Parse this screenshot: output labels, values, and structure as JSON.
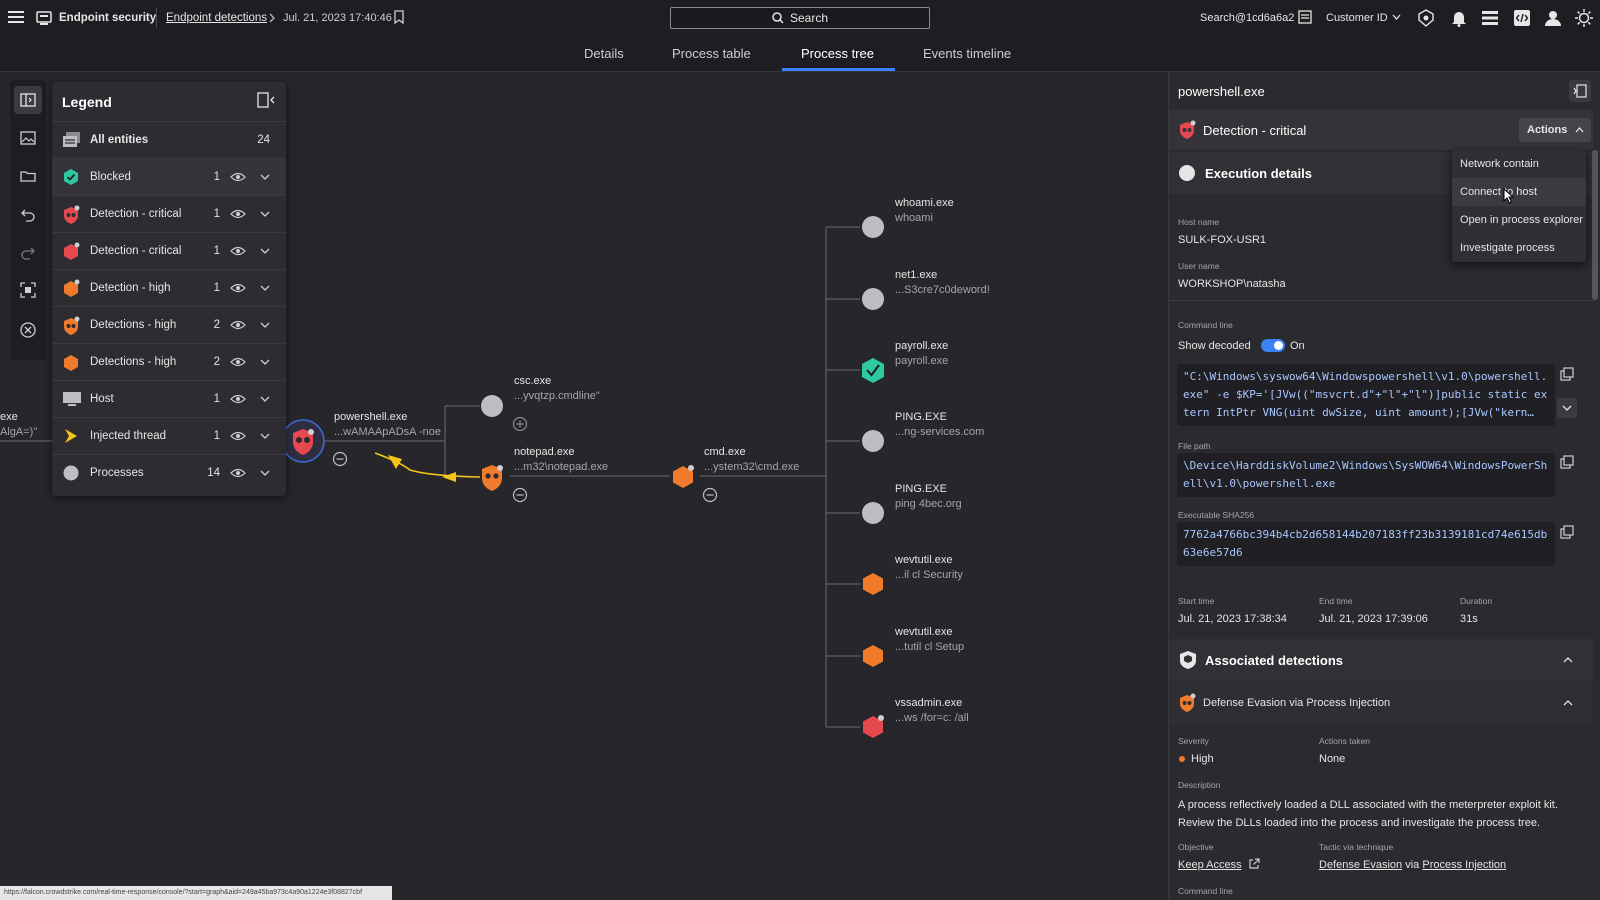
{
  "topbar": {
    "app_title": "Endpoint security",
    "breadcrumb_link": "Endpoint detections",
    "breadcrumb_current": "Jul. 21, 2023 17:40:46",
    "search_label": "Search",
    "user": "Search@1cd6a6a2",
    "customer_label": "Customer ID"
  },
  "tabs": [
    {
      "label": "Details",
      "active": false
    },
    {
      "label": "Process table",
      "active": false
    },
    {
      "label": "Process tree",
      "active": true
    },
    {
      "label": "Events timeline",
      "active": false
    }
  ],
  "legend": {
    "title": "Legend",
    "rows": [
      {
        "label": "All entities",
        "count": "24",
        "icon": "all-entities-icon"
      },
      {
        "label": "Blocked",
        "count": "1",
        "icon": "blocked-icon"
      },
      {
        "label": "Detection - critical",
        "count": "1",
        "icon": "critical-shield-icon"
      },
      {
        "label": "Detection - critical",
        "count": "1",
        "icon": "critical-hex-icon"
      },
      {
        "label": "Detection - high",
        "count": "1",
        "icon": "high-hex-icon"
      },
      {
        "label": "Detections - high",
        "count": "2",
        "icon": "high-shield-icon"
      },
      {
        "label": "Detections - high",
        "count": "2",
        "icon": "high-hex-icon"
      },
      {
        "label": "Host",
        "count": "1",
        "icon": "host-icon"
      },
      {
        "label": "Injected thread",
        "count": "1",
        "icon": "injected-thread-icon"
      },
      {
        "label": "Processes",
        "count": "14",
        "icon": "process-icon"
      }
    ]
  },
  "graph": {
    "partial_left": {
      "name": "exe",
      "sub": "AlgA=)\""
    },
    "powershell": {
      "name": "powershell.exe",
      "sub": "...wAMAApADsA -noe"
    },
    "csc": {
      "name": "csc.exe",
      "sub": "...yvqtzp.cmdline\""
    },
    "notepad": {
      "name": "notepad.exe",
      "sub": "...m32\\notepad.exe"
    },
    "cmd": {
      "name": "cmd.exe",
      "sub": "...ystem32\\cmd.exe"
    },
    "children": [
      {
        "name": "whoami.exe",
        "sub": "whoami"
      },
      {
        "name": "net1.exe",
        "sub": "...S3cre7c0deword!"
      },
      {
        "name": "payroll.exe",
        "sub": "payroll.exe"
      },
      {
        "name": "PING.EXE",
        "sub": "...ng-services.com"
      },
      {
        "name": "PING.EXE",
        "sub": "ping  4bec.org"
      },
      {
        "name": "wevtutil.exe",
        "sub": "...il  cl Security"
      },
      {
        "name": "wevtutil.exe",
        "sub": "...tutil  cl Setup"
      },
      {
        "name": "vssadmin.exe",
        "sub": "...ws /for=c: /all"
      }
    ]
  },
  "panel": {
    "title": "powershell.exe",
    "detection_title": "Detection - critical",
    "actions_label": "Actions",
    "actions_menu": [
      "Network contain",
      "Connect to host",
      "Open in process explorer",
      "Investigate process"
    ],
    "execution_title": "Execution details",
    "host_label": "Host name",
    "host_value": "SULK-FOX-USR1",
    "user_label": "User name",
    "user_value": "WORKSHOP\\natasha",
    "cmd_label": "Command line",
    "show_decoded_label": "Show decoded",
    "show_decoded_state": "On",
    "cmd_value": "\"C:\\Windows\\syswow64\\Windowspowershell\\v1.0\\powershell.exe\" -e $KP='[JVw((\"msvcrt.d\"+\"l\"+\"l\")]public static extern IntPtr VNG(uint dwSize, uint amount);[JVw(\"kern…",
    "filepath_label": "File path",
    "filepath_value": "\\Device\\HarddiskVolume2\\Windows\\SysWOW64\\WindowsPowerShell\\v1.0\\powershell.exe",
    "sha_label": "Executable SHA256",
    "sha_value": "7762a4766bc394b4cb2d658144b207183ff23b3139181cd74e615db63e6e57d6",
    "start_label": "Start time",
    "start_value": "Jul. 21, 2023 17:38:34",
    "end_label": "End time",
    "end_value": "Jul. 21, 2023 17:39:06",
    "duration_label": "Duration",
    "duration_value": "31s",
    "assoc_title": "Associated detections",
    "assoc_item": "Defense Evasion via Process Injection",
    "severity_label": "Severity",
    "severity_value": "High",
    "actions_taken_label": "Actions taken",
    "actions_taken_value": "None",
    "description_label": "Description",
    "description_value": "A process reflectively loaded a DLL associated with the meterpreter exploit kit. Review the DLLs loaded into the process and investigate the process tree.",
    "objective_label": "Objective",
    "objective_value": "Keep Access",
    "tactic_label": "Tactic via technique",
    "tactic_value": "Defense Evasion",
    "via_text": "via",
    "technique_value": "Process Injection",
    "cmd_label_2": "Command line"
  },
  "statusbar": {
    "url": "https://falcon.crowdstrike.com/real-time-response/console/?start=graph&aid=249a45ba973c4a90a1224e3f08827cbf"
  },
  "colors": {
    "accent": "#3b82f6",
    "critical": "#e5484d",
    "high": "#f07b2d",
    "blocked": "#2ec9a0",
    "process": "#bdbdc2"
  }
}
